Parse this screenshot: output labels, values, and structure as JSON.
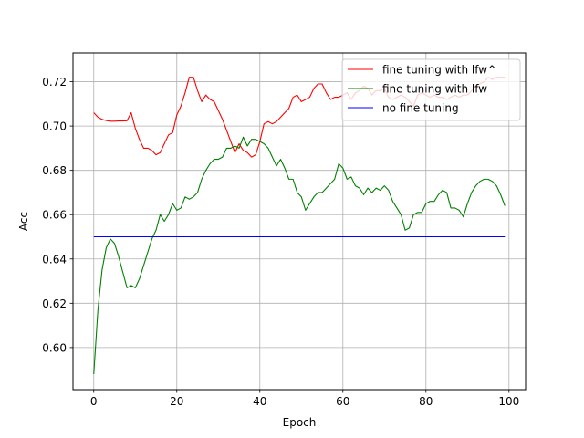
{
  "chart_data": {
    "type": "line",
    "title": "",
    "xlabel": "Epoch",
    "ylabel": "Acc",
    "xlim": [
      -5,
      104
    ],
    "ylim": [
      0.581,
      0.733
    ],
    "xticks": [
      0,
      20,
      40,
      60,
      80,
      100
    ],
    "xtick_labels": [
      "0",
      "20",
      "40",
      "60",
      "80",
      "100"
    ],
    "yticks": [
      0.6,
      0.62,
      0.64,
      0.66,
      0.68,
      0.7,
      0.72
    ],
    "ytick_labels": [
      "0.60",
      "0.62",
      "0.64",
      "0.66",
      "0.68",
      "0.70",
      "0.72"
    ],
    "grid": true,
    "legend_position": "top-right",
    "x": [
      0,
      1,
      2,
      3,
      4,
      5,
      6,
      7,
      8,
      9,
      10,
      11,
      12,
      13,
      14,
      15,
      16,
      17,
      18,
      19,
      20,
      21,
      22,
      23,
      24,
      25,
      26,
      27,
      28,
      29,
      30,
      31,
      32,
      33,
      34,
      35,
      36,
      37,
      38,
      39,
      40,
      41,
      42,
      43,
      44,
      45,
      46,
      47,
      48,
      49,
      50,
      51,
      52,
      53,
      54,
      55,
      56,
      57,
      58,
      59,
      60,
      61,
      62,
      63,
      64,
      65,
      66,
      67,
      68,
      69,
      70,
      71,
      72,
      73,
      74,
      75,
      76,
      77,
      78,
      79,
      80,
      81,
      82,
      83,
      84,
      85,
      86,
      87,
      88,
      89,
      90,
      91,
      92,
      93,
      94,
      95,
      96,
      97,
      98,
      99
    ],
    "series": [
      {
        "name": "fine tuning with lfw^",
        "color": "#ff0000",
        "values": [
          0.706,
          0.704,
          0.703,
          0.7025,
          0.7022,
          0.7022,
          0.7023,
          0.7023,
          0.7024,
          0.706,
          0.699,
          0.694,
          0.69,
          0.69,
          0.689,
          0.687,
          0.688,
          0.692,
          0.696,
          0.697,
          0.705,
          0.709,
          0.715,
          0.722,
          0.722,
          0.716,
          0.711,
          0.714,
          0.712,
          0.711,
          0.707,
          0.703,
          0.698,
          0.693,
          0.688,
          0.692,
          0.689,
          0.688,
          0.686,
          0.687,
          0.693,
          0.701,
          0.702,
          0.701,
          0.702,
          0.704,
          0.706,
          0.708,
          0.713,
          0.714,
          0.711,
          0.712,
          0.713,
          0.717,
          0.719,
          0.719,
          0.715,
          0.712,
          0.713,
          0.713,
          0.714,
          0.715,
          0.712,
          0.715,
          0.716,
          0.718,
          0.717,
          0.714,
          0.716,
          0.716,
          0.717,
          0.713,
          0.712,
          0.713,
          0.714,
          0.713,
          0.711,
          0.709,
          0.714,
          0.715,
          0.714,
          0.713,
          0.714,
          0.713,
          0.713,
          0.712,
          0.713,
          0.714,
          0.713,
          0.714,
          0.714,
          0.716,
          0.718,
          0.719,
          0.72,
          0.722,
          0.721,
          0.722,
          0.722,
          0.722
        ]
      },
      {
        "name": "fine tuning with lfw",
        "color": "#008000",
        "values": [
          0.588,
          0.617,
          0.635,
          0.645,
          0.649,
          0.647,
          0.641,
          0.634,
          0.627,
          0.628,
          0.627,
          0.631,
          0.637,
          0.643,
          0.649,
          0.653,
          0.66,
          0.657,
          0.66,
          0.665,
          0.662,
          0.663,
          0.668,
          0.667,
          0.668,
          0.67,
          0.676,
          0.68,
          0.683,
          0.685,
          0.685,
          0.686,
          0.69,
          0.69,
          0.691,
          0.69,
          0.695,
          0.691,
          0.694,
          0.694,
          0.693,
          0.692,
          0.69,
          0.686,
          0.682,
          0.685,
          0.681,
          0.676,
          0.676,
          0.67,
          0.668,
          0.662,
          0.665,
          0.668,
          0.67,
          0.67,
          0.672,
          0.674,
          0.676,
          0.683,
          0.681,
          0.676,
          0.677,
          0.673,
          0.672,
          0.669,
          0.672,
          0.67,
          0.672,
          0.671,
          0.673,
          0.671,
          0.666,
          0.663,
          0.66,
          0.653,
          0.654,
          0.66,
          0.661,
          0.661,
          0.665,
          0.666,
          0.666,
          0.669,
          0.671,
          0.67,
          0.663,
          0.663,
          0.662,
          0.659,
          0.665,
          0.67,
          0.673,
          0.675,
          0.676,
          0.676,
          0.675,
          0.673,
          0.669,
          0.664
        ]
      },
      {
        "name": "no fine tuning",
        "color": "#0000ff",
        "values": [
          0.65,
          0.65,
          0.65,
          0.65,
          0.65,
          0.65,
          0.65,
          0.65,
          0.65,
          0.65,
          0.65,
          0.65,
          0.65,
          0.65,
          0.65,
          0.65,
          0.65,
          0.65,
          0.65,
          0.65,
          0.65,
          0.65,
          0.65,
          0.65,
          0.65,
          0.65,
          0.65,
          0.65,
          0.65,
          0.65,
          0.65,
          0.65,
          0.65,
          0.65,
          0.65,
          0.65,
          0.65,
          0.65,
          0.65,
          0.65,
          0.65,
          0.65,
          0.65,
          0.65,
          0.65,
          0.65,
          0.65,
          0.65,
          0.65,
          0.65,
          0.65,
          0.65,
          0.65,
          0.65,
          0.65,
          0.65,
          0.65,
          0.65,
          0.65,
          0.65,
          0.65,
          0.65,
          0.65,
          0.65,
          0.65,
          0.65,
          0.65,
          0.65,
          0.65,
          0.65,
          0.65,
          0.65,
          0.65,
          0.65,
          0.65,
          0.65,
          0.65,
          0.65,
          0.65,
          0.65,
          0.65,
          0.65,
          0.65,
          0.65,
          0.65,
          0.65,
          0.65,
          0.65,
          0.65,
          0.65,
          0.65,
          0.65,
          0.65,
          0.65,
          0.65,
          0.65,
          0.65,
          0.65,
          0.65,
          0.65
        ]
      }
    ]
  }
}
